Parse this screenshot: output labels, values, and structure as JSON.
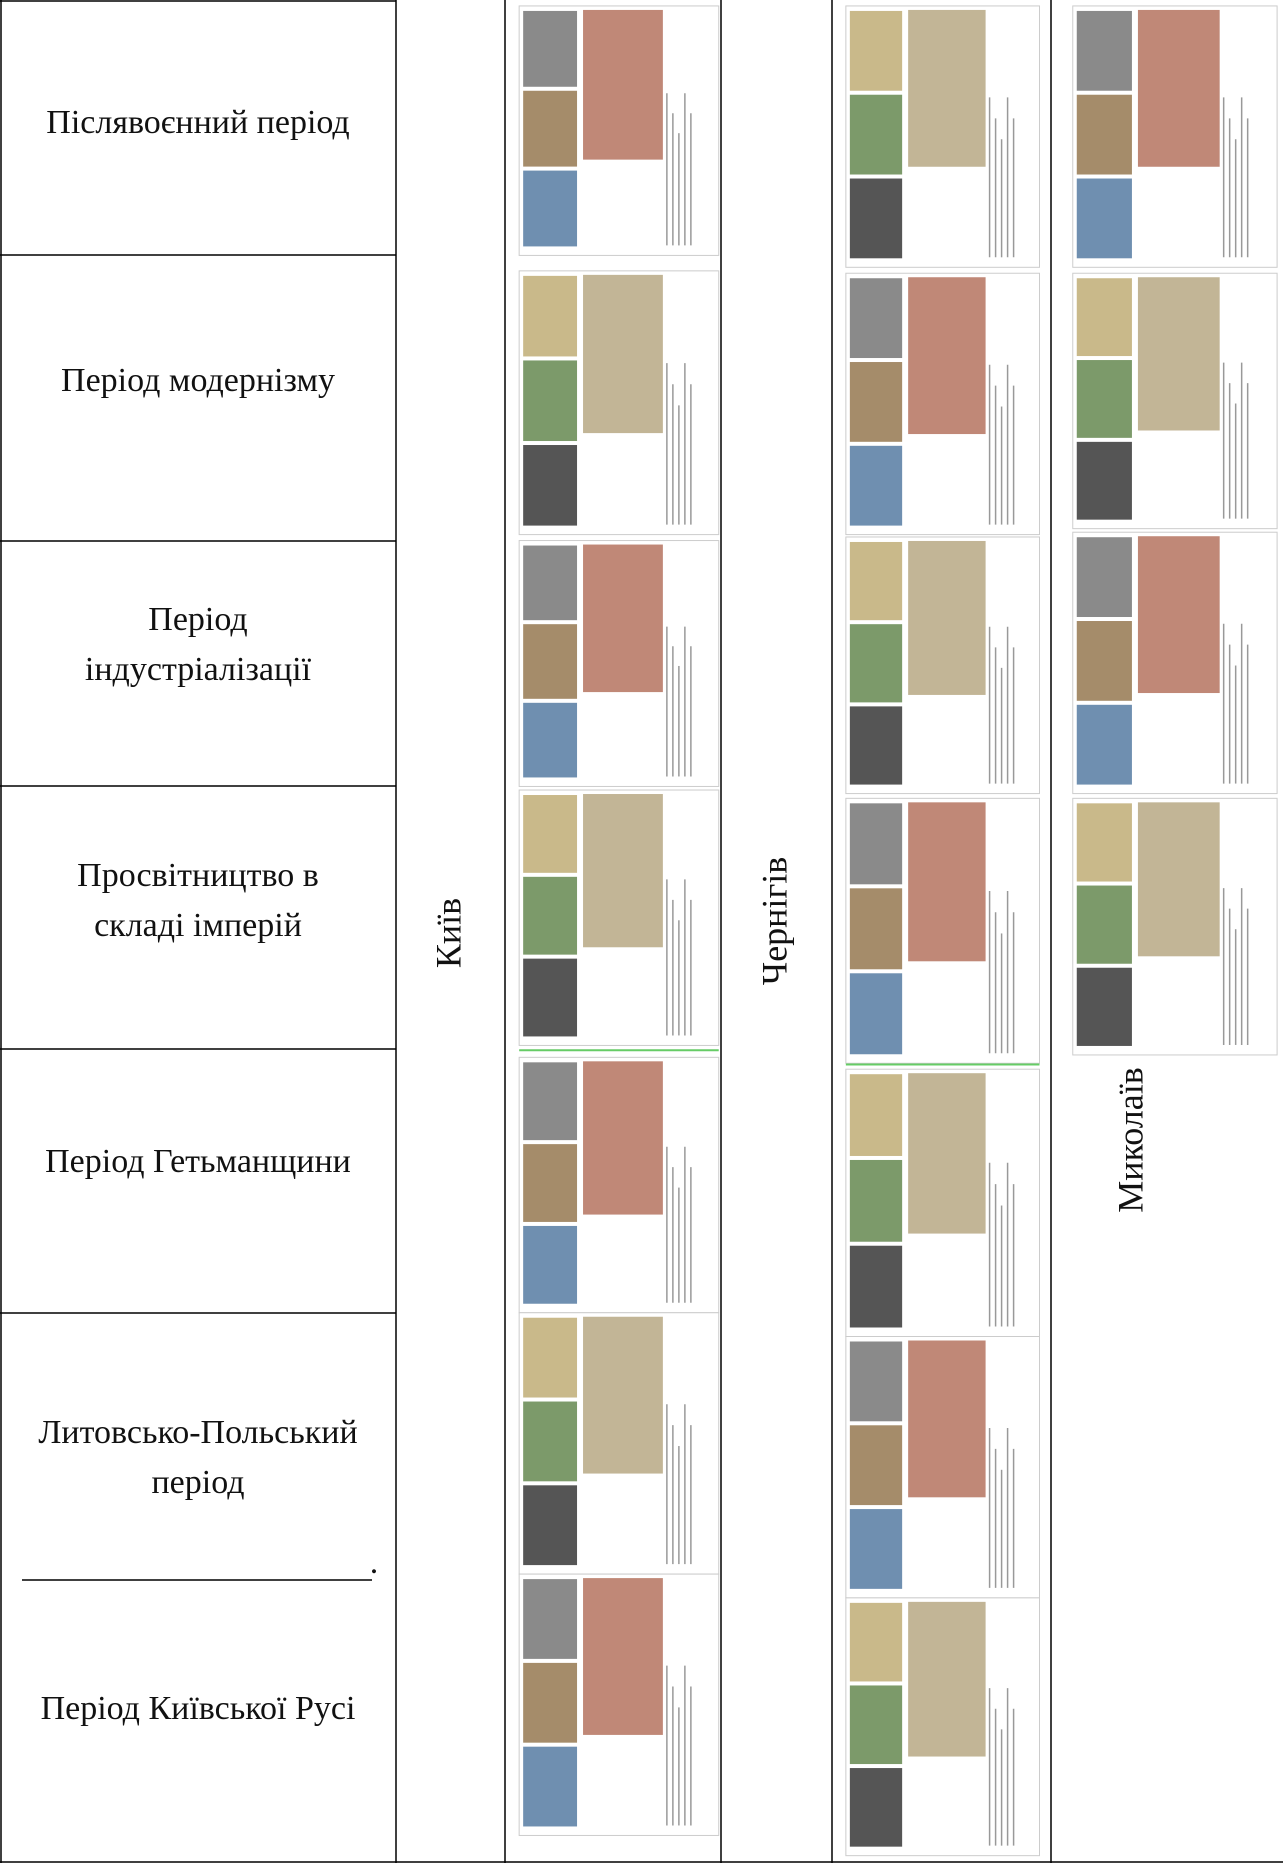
{
  "periods": [
    "Післявоєнний період",
    "Період модернізму",
    "Період індустріалізації",
    "Просвітництво в складі імперій",
    "Період Гетьманщини",
    "Литовсько-Польський період",
    "Період Київської Русі"
  ],
  "underline_mark": ".",
  "cities": [
    "Київ",
    "Чернігів",
    "Миколаїв"
  ]
}
